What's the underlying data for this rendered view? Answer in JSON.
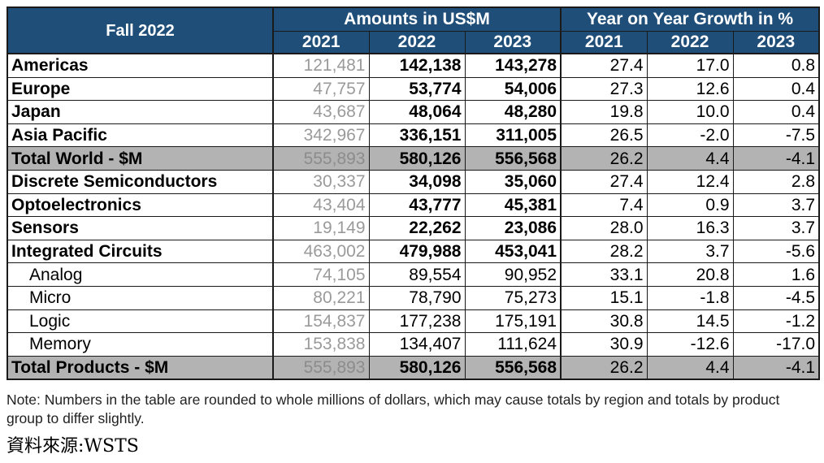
{
  "table": {
    "corner": "Fall 2022",
    "group_amounts": "Amounts in US$M",
    "group_growth": "Year on Year Growth in %",
    "years_amounts": [
      "2021",
      "2022",
      "2023"
    ],
    "years_growth": [
      "2021",
      "2022",
      "2023"
    ],
    "rows": [
      {
        "label": "Americas",
        "kind": "main",
        "values": [
          "121,481",
          "142,138",
          "143,278",
          "27.4",
          "17.0",
          "0.8"
        ]
      },
      {
        "label": "Europe",
        "kind": "main",
        "values": [
          "47,757",
          "53,774",
          "54,006",
          "27.3",
          "12.6",
          "0.4"
        ]
      },
      {
        "label": "Japan",
        "kind": "main",
        "values": [
          "43,687",
          "48,064",
          "48,280",
          "19.8",
          "10.0",
          "0.4"
        ]
      },
      {
        "label": "Asia Pacific",
        "kind": "main",
        "values": [
          "342,967",
          "336,151",
          "311,005",
          "26.5",
          "-2.0",
          "-7.5"
        ]
      },
      {
        "label": "Total World - $M",
        "kind": "total",
        "values": [
          "555,893",
          "580,126",
          "556,568",
          "26.2",
          "4.4",
          "-4.1"
        ]
      },
      {
        "label": "Discrete Semiconductors",
        "kind": "main",
        "values": [
          "30,337",
          "34,098",
          "35,060",
          "27.4",
          "12.4",
          "2.8"
        ]
      },
      {
        "label": "Optoelectronics",
        "kind": "main",
        "values": [
          "43,404",
          "43,777",
          "45,381",
          "7.4",
          "0.9",
          "3.7"
        ]
      },
      {
        "label": "Sensors",
        "kind": "main",
        "values": [
          "19,149",
          "22,262",
          "23,086",
          "28.0",
          "16.3",
          "3.7"
        ]
      },
      {
        "label": "Integrated Circuits",
        "kind": "main",
        "values": [
          "463,002",
          "479,988",
          "453,041",
          "28.2",
          "3.7",
          "-5.6"
        ]
      },
      {
        "label": "Analog",
        "kind": "sub",
        "values": [
          "74,105",
          "89,554",
          "90,952",
          "33.1",
          "20.8",
          "1.6"
        ]
      },
      {
        "label": "Micro",
        "kind": "sub",
        "values": [
          "80,221",
          "78,790",
          "75,273",
          "15.1",
          "-1.8",
          "-4.5"
        ]
      },
      {
        "label": "Logic",
        "kind": "sub",
        "values": [
          "154,837",
          "177,238",
          "175,191",
          "30.8",
          "14.5",
          "-1.2"
        ]
      },
      {
        "label": "Memory",
        "kind": "sub",
        "values": [
          "153,838",
          "134,407",
          "111,624",
          "30.9",
          "-12.6",
          "-17.0"
        ]
      },
      {
        "label": "Total Products - $M",
        "kind": "total",
        "values": [
          "555,893",
          "580,126",
          "556,568",
          "26.2",
          "4.4",
          "-4.1"
        ]
      }
    ]
  },
  "note": "Note: Numbers in the table are rounded to whole millions of dollars, which may cause totals by region and totals by product group to differ slightly.",
  "source": "資料來源:WSTS",
  "colors": {
    "header_bg": "#1f4e79",
    "header_text": "#ffffff",
    "total_row_bg": "#b3b3b3",
    "year_2021_text": "#9a9a9a"
  }
}
